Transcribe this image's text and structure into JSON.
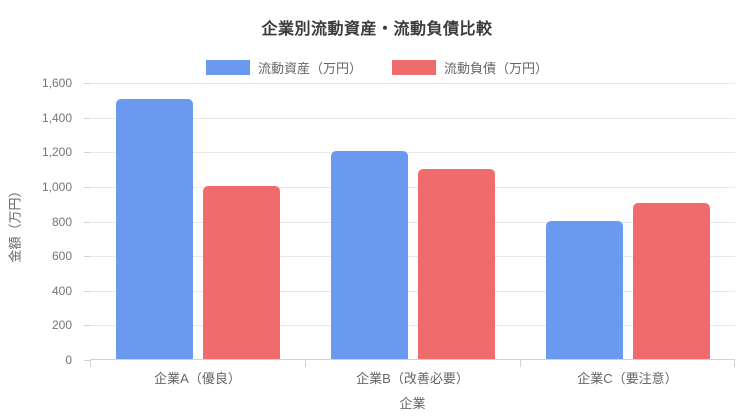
{
  "page": {
    "background": "#ffffff"
  },
  "style": {
    "grid_color": "#e8e8e8",
    "axis_color": "#d2d2d2",
    "title_color": "#3b3b3b",
    "label_color": "#666666",
    "tick_color": "#757575"
  },
  "chart_data": {
    "type": "bar",
    "title": "企業別流動資産・流動負債比較",
    "xlabel": "企業",
    "ylabel": "金額（万円）",
    "categories": [
      "企業A（優良）",
      "企業B（改善必要）",
      "企業C（要注意）"
    ],
    "series": [
      {
        "name": "流動資産（万円）",
        "color": "#6A9AF0",
        "values": [
          1500,
          1200,
          800
        ]
      },
      {
        "name": "流動負債（万円）",
        "color": "#F06C6C",
        "values": [
          1000,
          1100,
          900
        ]
      }
    ],
    "ylim": [
      0,
      1600
    ],
    "y_ticks": [
      {
        "value": 0,
        "label": "0"
      },
      {
        "value": 200,
        "label": "200"
      },
      {
        "value": 400,
        "label": "400"
      },
      {
        "value": 600,
        "label": "600"
      },
      {
        "value": 800,
        "label": "800"
      },
      {
        "value": 1000,
        "label": "1,000"
      },
      {
        "value": 1200,
        "label": "1,200"
      },
      {
        "value": 1400,
        "label": "1,400"
      },
      {
        "value": 1600,
        "label": "1,600"
      }
    ],
    "grid": "horizontal",
    "legend_position": "top"
  }
}
